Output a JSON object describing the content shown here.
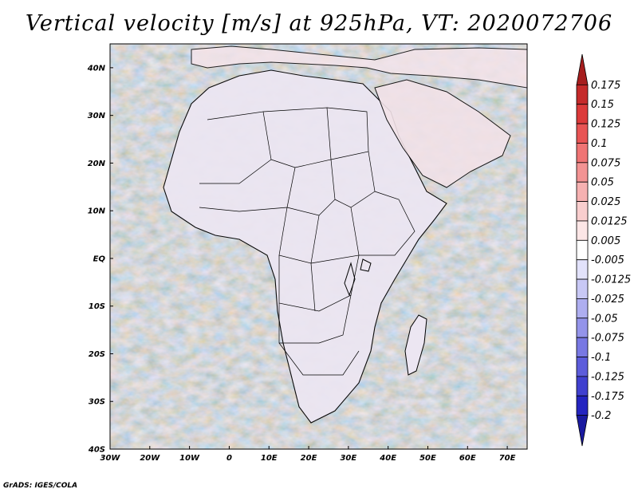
{
  "title": "Vertical velocity [m/s] at 925hPa, VT: 2020072706",
  "credit": "GrADS: IGES/COLA",
  "map": {
    "lat_labels": [
      "40N",
      "30N",
      "20N",
      "10N",
      "EQ",
      "10S",
      "20S",
      "30S",
      "40S"
    ],
    "lon_labels": [
      "30W",
      "20W",
      "10W",
      "0",
      "10E",
      "20E",
      "30E",
      "40E",
      "50E",
      "60E",
      "70E"
    ],
    "lon_range": [
      -30,
      75
    ],
    "lat_range": [
      -40,
      45
    ]
  },
  "colorbar": {
    "levels": [
      "0.175",
      "0.15",
      "0.125",
      "0.1",
      "0.075",
      "0.05",
      "0.025",
      "0.0125",
      "0.005",
      "-0.005",
      "-0.0125",
      "-0.025",
      "-0.05",
      "-0.075",
      "-0.1",
      "-0.125",
      "-0.175",
      "-0.2"
    ],
    "colors": [
      "#a61e1e",
      "#c52a2a",
      "#dc3a3a",
      "#e85454",
      "#ef7474",
      "#f39393",
      "#f6b1b1",
      "#f9cece",
      "#fce6e6",
      "#ffffff",
      "#e2e2fb",
      "#c8c8f5",
      "#aeaef0",
      "#9494ea",
      "#7878e3",
      "#5c5cdb",
      "#4040cf",
      "#2424c0",
      "#1a1aa0"
    ]
  }
}
